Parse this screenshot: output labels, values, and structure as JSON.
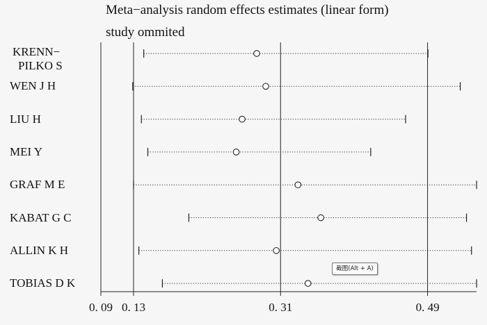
{
  "chart_data": {
    "type": "forest",
    "title": "Meta−analysis random effects estimates (linear form)",
    "subtitle": "study ommited",
    "xlim": [
      0.09,
      0.55
    ],
    "ticks": [
      {
        "value": 0.09,
        "label": "0. 09"
      },
      {
        "value": 0.13,
        "label": "0. 13"
      },
      {
        "value": 0.31,
        "label": "0. 31"
      },
      {
        "value": 0.49,
        "label": "0. 49"
      }
    ],
    "reference_lines": [
      0.13,
      0.31,
      0.49
    ],
    "studies": [
      {
        "label_lines": [
          "KRENN−",
          "PILKO S"
        ],
        "estimate": 0.2808,
        "lower": 0.1425,
        "upper": 0.4905
      },
      {
        "label_lines": [
          "WEN J H"
        ],
        "estimate": 0.2919,
        "lower": 0.129,
        "upper": 0.53
      },
      {
        "label_lines": [
          "LIU H"
        ],
        "estimate": 0.2629,
        "lower": 0.1396,
        "upper": 0.4631
      },
      {
        "label_lines": [
          "MEI Y"
        ],
        "estimate": 0.2557,
        "lower": 0.1475,
        "upper": 0.4204
      },
      {
        "label_lines": [
          "GRAF M E"
        ],
        "estimate": 0.3313,
        "lower": 0.13,
        "upper": 0.55
      },
      {
        "label_lines": [
          "KABAT G C"
        ],
        "estimate": 0.3593,
        "lower": 0.1977,
        "upper": 0.5377
      },
      {
        "label_lines": [
          "ALLIN K H"
        ],
        "estimate": 0.3048,
        "lower": 0.1365,
        "upper": 0.5438
      },
      {
        "label_lines": [
          "TOBIAS D K"
        ],
        "estimate": 0.3436,
        "lower": 0.1653,
        "upper": 0.55
      }
    ]
  },
  "screenshot_chip": {
    "label": "截图(Alt + A)"
  }
}
